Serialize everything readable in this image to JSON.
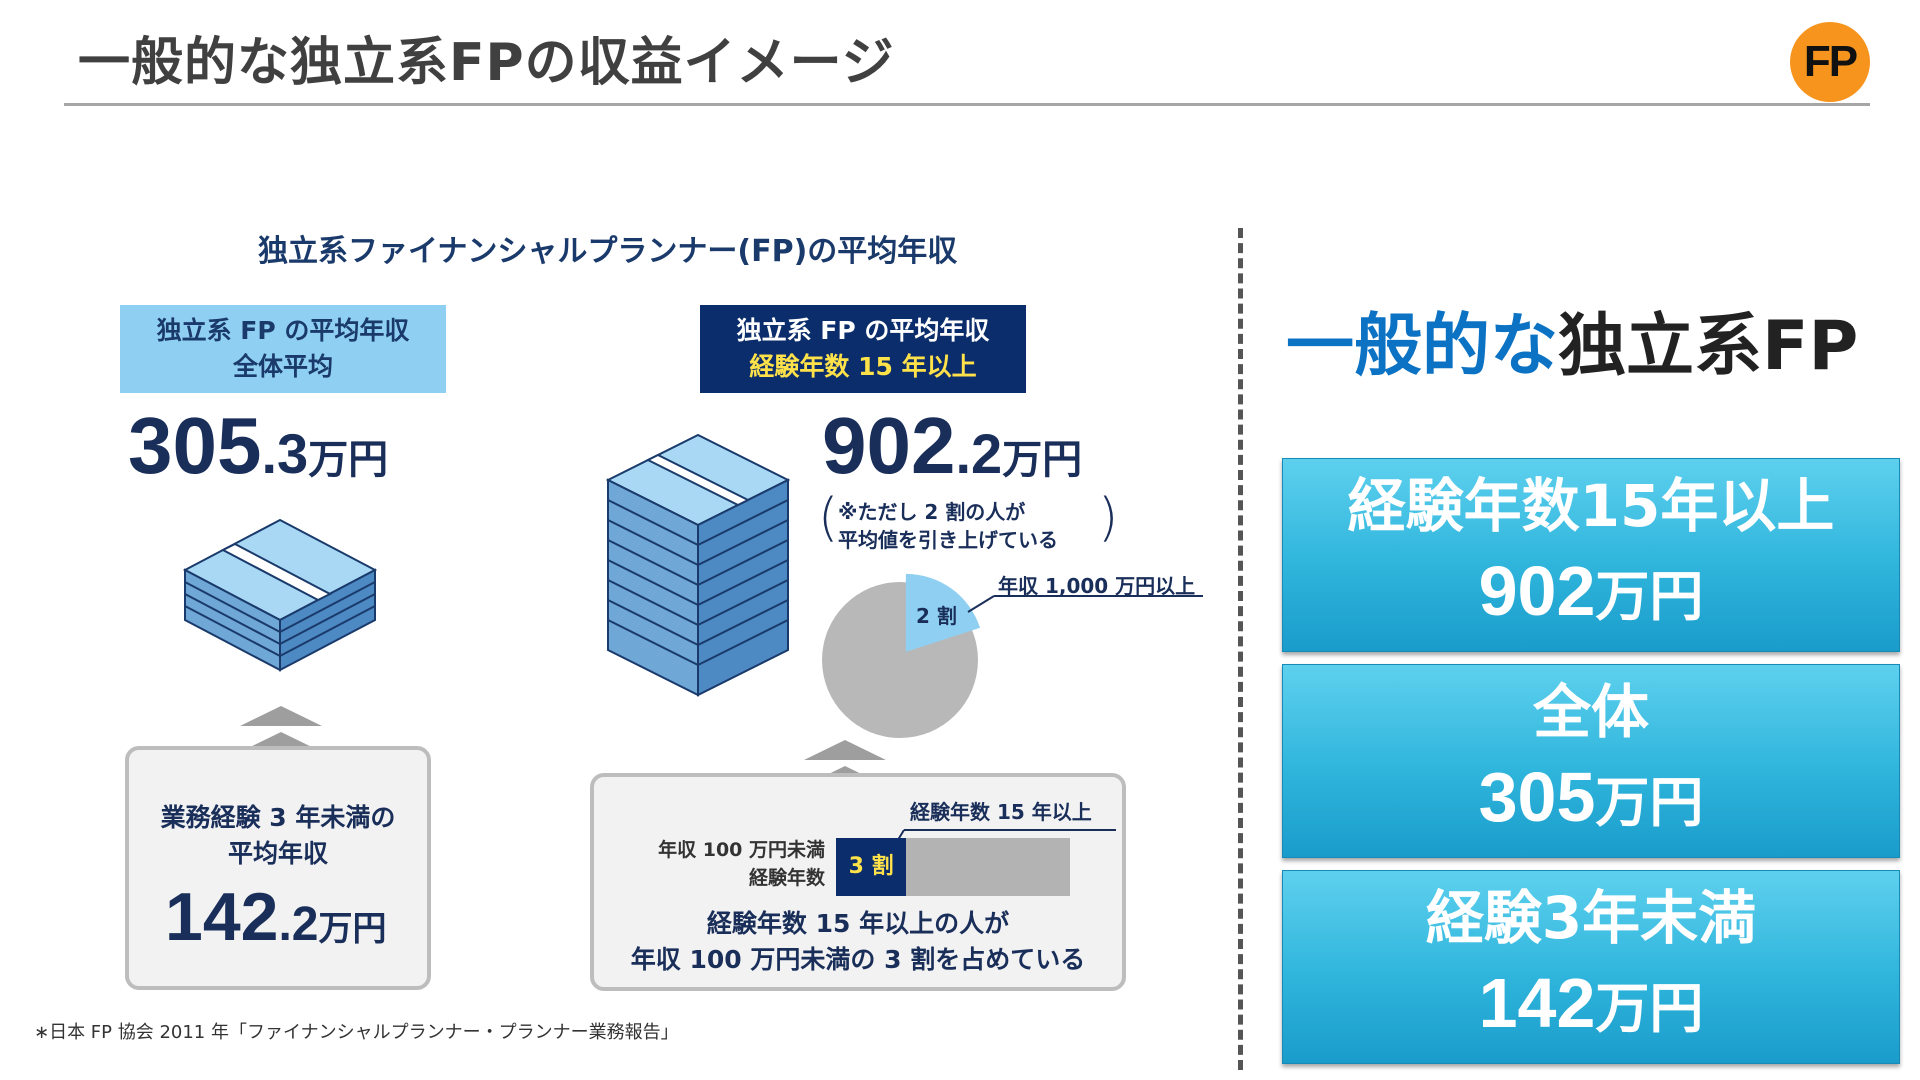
{
  "header": {
    "title": "一般的な独立系FPの収益イメージ",
    "logo": "FP"
  },
  "infographic": {
    "title": "独立系ファイナンシャルプランナー(FP)の平均年収",
    "left_tag": {
      "line1": "独立系 FP の平均年収",
      "line2": "全体平均"
    },
    "right_tag": {
      "line1": "独立系 FP の平均年収",
      "line2": "経験年数 15 年以上"
    },
    "left_value": {
      "main": "305",
      "dec": ".3",
      "unit": "万円"
    },
    "right_value": {
      "main": "902",
      "dec": ".2",
      "unit": "万円"
    },
    "note": {
      "line1": "※ただし 2 割の人が",
      "line2": "平均値を引き上げている"
    },
    "pie": {
      "slice_label": "2 割",
      "callout": "年収 1,000 万円以上",
      "fraction": 0.2
    },
    "left_box": {
      "line1": "業務経験 3 年未満の",
      "line2": "平均年収",
      "main": "142",
      "dec": ".2",
      "unit": "万円"
    },
    "right_box": {
      "bar_title": "経験年数 15 年以上",
      "bar_label1": "年収 100 万円未満",
      "bar_label2": "経験年数",
      "bar_value_label": "3 割",
      "bar_fraction": 0.3,
      "text1": "経験年数 15 年以上の人が",
      "text2": "年収 100 万円未満の 3 割を占めている"
    },
    "footnote": "∗日本 FP 協会 2011 年「ファイナンシャルプランナー・プランナー業務報告」"
  },
  "right_panel": {
    "title_blue": "一般的な",
    "title_dark": "独立系FP",
    "cards": [
      {
        "label": "経験年数15年以上",
        "value": "902",
        "unit": "万円"
      },
      {
        "label": "全体",
        "value": "305",
        "unit": "万円"
      },
      {
        "label": "経験3年未満",
        "value": "142",
        "unit": "万円"
      }
    ]
  },
  "colors": {
    "navy": "#0b2d6b",
    "light_blue": "#8fd0f2",
    "card_blue": "#2fb5dc",
    "title_blue": "#0b72c4",
    "logo_orange": "#f7941d"
  }
}
